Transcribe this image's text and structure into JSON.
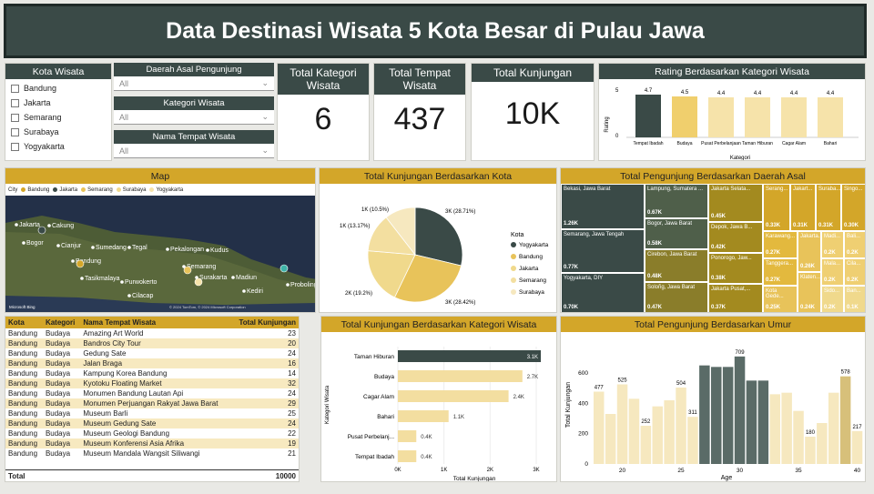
{
  "header": {
    "title": "Data Destinasi Wisata 5 Kota Besar di Pulau Jawa"
  },
  "kota_slicer": {
    "title": "Kota Wisata",
    "items": [
      "Bandung",
      "Jakarta",
      "Semarang",
      "Surabaya",
      "Yogyakarta"
    ]
  },
  "filters": [
    {
      "label": "Daerah Asal Pengunjung",
      "value": "All"
    },
    {
      "label": "Kategori Wisata",
      "value": "All"
    },
    {
      "label": "Nama Tempat Wisata",
      "value": "All"
    }
  ],
  "kpis": [
    {
      "label": "Total Kategori Wisata",
      "value": "6"
    },
    {
      "label": "Total Tempat Wisata",
      "value": "437"
    },
    {
      "label": "Total Kunjungan",
      "value": "10K"
    }
  ],
  "rating_chart": {
    "title": "Rating Berdasarkan Kategori Wisata",
    "ylabel": "Rating",
    "xlabel": "Kategori",
    "ytick": "5",
    "ytick0": "0",
    "categories": [
      "Tempat Ibadah",
      "Budaya",
      "Pusat Perbelanjaan",
      "Taman Hiburan",
      "Cagar Alam",
      "Bahari"
    ],
    "values": [
      4.7,
      4.5,
      4.4,
      4.4,
      4.4,
      4.4
    ],
    "labels": [
      "4.7",
      "4.5",
      "4.4",
      "4.4",
      "4.4",
      "4.4"
    ],
    "colors": [
      "#3a4a47",
      "#f0cf6d",
      "#f6e3aa",
      "#f6e3aa",
      "#f6e3aa",
      "#f6e3aa"
    ]
  },
  "map": {
    "title": "Map",
    "legend_title": "City",
    "legend": [
      {
        "name": "Bandung",
        "color": "#d3a629"
      },
      {
        "name": "Jakarta",
        "color": "#3a4a47"
      },
      {
        "name": "Semarang",
        "color": "#e8c35a"
      },
      {
        "name": "Surabaya",
        "color": "#f0d98c"
      },
      {
        "name": "Yogyakarta",
        "color": "#f6e3aa"
      }
    ],
    "places": [
      "Jakarta",
      "Cakung",
      "Bogor",
      "Cianjur",
      "Sumedang",
      "Tegal",
      "Pekalongan",
      "Kudus",
      "Bandung",
      "Tasikmalaya",
      "Purwokerto",
      "Semarang",
      "Surakarta",
      "Madiun",
      "Kediri",
      "Cilacap",
      "Probolinggo"
    ],
    "credit": "Microsoft Bing",
    "copyright": "© 2024 TomTom, © 2024 Microsoft Corporation"
  },
  "pie_chart": {
    "title": "Total Kunjungan Berdasarkan Kota",
    "legend_title": "Kota",
    "legend": [
      "Yogyakarta",
      "Bandung",
      "Jakarta",
      "Semarang",
      "Surabaya"
    ],
    "values": [
      28.71,
      28.42,
      19.2,
      13.17,
      10.5
    ],
    "labels": [
      "3K (28.71%)",
      "3K (28.42%)",
      "2K (19.2%)",
      "1K (13.17%)",
      "1K (10.5%)"
    ],
    "colors": [
      "#3a4a47",
      "#e8c35a",
      "#f0d98c",
      "#f3dfa0",
      "#f6e8bf"
    ]
  },
  "treemap": {
    "title": "Total Pengunjung Berdasarkan Daerah Asal",
    "cells": [
      {
        "name": "Bekasi, Jawa Barat",
        "value": "1.26K"
      },
      {
        "name": "Semarang, Jawa Tengah",
        "value": "0.77K"
      },
      {
        "name": "Yogyakarta, DIY",
        "value": "0.70K"
      },
      {
        "name": "Lampung, Sumatera ...",
        "value": "0.67K"
      },
      {
        "name": "Bogor, Jawa Barat",
        "value": "0.58K"
      },
      {
        "name": "Cirebon, Jawa Barat",
        "value": "0.48K"
      },
      {
        "name": "Soloñg, Jawa Barat",
        "value": "0.47K"
      },
      {
        "name": "Jakarta Selata...",
        "value": "0.45K"
      },
      {
        "name": "Depok, Jawa B...",
        "value": "0.42K"
      },
      {
        "name": "Ponorogo, Jaw...",
        "value": "0.38K"
      },
      {
        "name": "Jakarta Pusat,...",
        "value": "0.37K"
      },
      {
        "name": "Serang...",
        "value": "0.33K"
      },
      {
        "name": "Jakart...",
        "value": "0.31K"
      },
      {
        "name": "Suraba...",
        "value": "0.31K"
      },
      {
        "name": "Singo...",
        "value": "0.30K"
      },
      {
        "name": "Karawang...",
        "value": "0.27K"
      },
      {
        "name": "Tanggera...",
        "value": "0.27K"
      },
      {
        "name": "Jakarta...",
        "value": "0.26K"
      },
      {
        "name": "Kota Gede...",
        "value": "0.25K"
      },
      {
        "name": "Klaten...",
        "value": "0.24K"
      },
      {
        "name": "Madi...",
        "value": "0.2K"
      },
      {
        "name": "Bali...",
        "value": "0.2K"
      },
      {
        "name": "Mala...",
        "value": "0.2K"
      },
      {
        "name": "Cila...",
        "value": "0.2K"
      },
      {
        "name": "Sido...",
        "value": "0.2K"
      },
      {
        "name": "Ban...",
        "value": "0.1K"
      }
    ]
  },
  "table": {
    "headers": [
      "Kota",
      "Kategori",
      "Nama Tempat Wisata",
      "Total Kunjungan"
    ],
    "rows": [
      [
        "Bandung",
        "Budaya",
        "Amazing Art World",
        "23"
      ],
      [
        "Bandung",
        "Budaya",
        "Bandros City Tour",
        "20"
      ],
      [
        "Bandung",
        "Budaya",
        "Gedung Sate",
        "24"
      ],
      [
        "Bandung",
        "Budaya",
        "Jalan Braga",
        "16"
      ],
      [
        "Bandung",
        "Budaya",
        "Kampung Korea Bandung",
        "14"
      ],
      [
        "Bandung",
        "Budaya",
        "Kyotoku Floating Market",
        "32"
      ],
      [
        "Bandung",
        "Budaya",
        "Monumen Bandung Lautan Api",
        "24"
      ],
      [
        "Bandung",
        "Budaya",
        "Monumen Perjuangan Rakyat Jawa Barat",
        "29"
      ],
      [
        "Bandung",
        "Budaya",
        "Museum Barli",
        "25"
      ],
      [
        "Bandung",
        "Budaya",
        "Museum Gedung Sate",
        "24"
      ],
      [
        "Bandung",
        "Budaya",
        "Museum Geologi Bandung",
        "22"
      ],
      [
        "Bandung",
        "Budaya",
        "Museum Konferensi Asia Afrika",
        "19"
      ],
      [
        "Bandung",
        "Budaya",
        "Museum Mandala Wangsit Siliwangi",
        "21"
      ]
    ],
    "total_label": "Total",
    "total_value": "10000"
  },
  "hbar_chart": {
    "title": "Total Kunjungan Berdasarkan Kategori Wisata",
    "ylabel": "Kategori Wisata",
    "xlabel": "Total Kunjungan",
    "xticks": [
      "0K",
      "1K",
      "2K",
      "3K"
    ],
    "categories": [
      "Taman Hiburan",
      "Budaya",
      "Cagar Alam",
      "Bahari",
      "Pusat Perbelanj...",
      "Tempat Ibadah"
    ],
    "values": [
      3.1,
      2.7,
      2.4,
      1.1,
      0.4,
      0.4
    ],
    "labels": [
      "3.1K",
      "2.7K",
      "2.4K",
      "1.1K",
      "0.4K",
      "0.4K"
    ]
  },
  "age_chart": {
    "title": "Total Pengunjung Berdasarkan Umur",
    "ylabel": "Total Kunjungan",
    "xlabel": "Age",
    "yticks": [
      "0",
      "200",
      "400",
      "600"
    ],
    "xticks": [
      "20",
      "25",
      "30",
      "35",
      "40"
    ],
    "ages": [
      18,
      19,
      20,
      21,
      22,
      23,
      24,
      25,
      26,
      27,
      28,
      29,
      30,
      31,
      32,
      33,
      34,
      35,
      36,
      37,
      38,
      39,
      40
    ],
    "values": [
      477,
      330,
      525,
      430,
      252,
      380,
      420,
      504,
      311,
      650,
      640,
      640,
      709,
      550,
      550,
      460,
      470,
      350,
      180,
      270,
      470,
      578,
      217
    ],
    "labels": {
      "18": "477",
      "20": "525",
      "22": "252",
      "25": "504",
      "26": "311",
      "30": "709",
      "36": "180",
      "39": "578",
      "40": "217"
    },
    "dark_ages": [
      27,
      28,
      29,
      30,
      31,
      32
    ]
  }
}
